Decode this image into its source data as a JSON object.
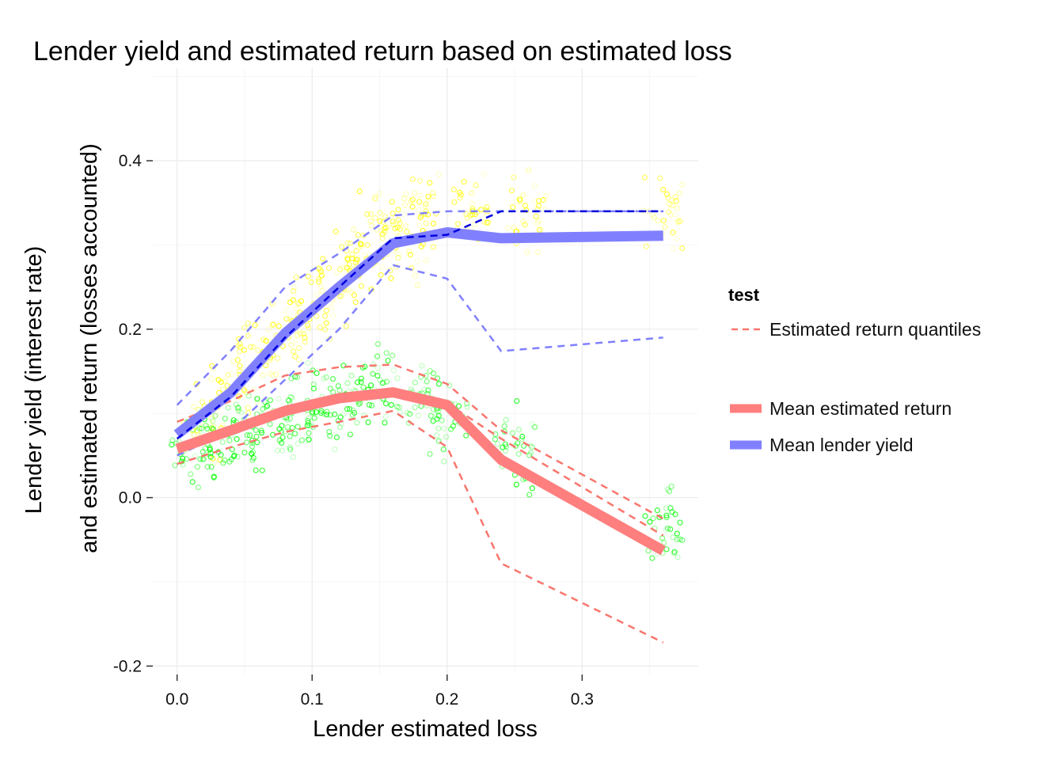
{
  "chart_data": {
    "type": "line",
    "title": "Lender yield and estimated return based on estimated loss",
    "xlabel": "Lender estimated loss",
    "ylabel_line1": "Lender yield (interest rate)",
    "ylabel_line2": "and estimated return (losses accounted)",
    "xlim": [
      -0.018,
      0.386
    ],
    "ylim": [
      -0.21,
      0.51
    ],
    "x_ticks": [
      0.0,
      0.1,
      0.2,
      0.3
    ],
    "x_tick_labels": [
      "0.0",
      "0.1",
      "0.2",
      "0.3"
    ],
    "y_ticks": [
      -0.2,
      0.0,
      0.2,
      0.4
    ],
    "y_tick_labels": [
      "-0.2",
      "0.0",
      "0.2",
      "0.4"
    ],
    "grid": true,
    "legend": {
      "title": "test",
      "position": "right",
      "entries": [
        {
          "label": "Estimated return quantiles",
          "style": "dashed",
          "color": "#f8766d"
        },
        {
          "label": "Mean estimated return",
          "style": "thick",
          "color": "#ff7f7f"
        },
        {
          "label": "Mean lender yield",
          "style": "thick",
          "color": "#8080ff"
        }
      ]
    },
    "colors": {
      "yield_points": "#ffff00",
      "return_points": "#00ff00",
      "mean_return": "#ff7f7f",
      "mean_yield": "#8080ff",
      "median_yield": "#0000dd",
      "quantile_return": "#f8766d",
      "quantile_yield": "#8080ff"
    },
    "series": [
      {
        "key": "mean_lender_yield",
        "x": [
          0.0,
          0.04,
          0.08,
          0.12,
          0.16,
          0.2,
          0.24,
          0.36
        ],
        "y": [
          0.075,
          0.125,
          0.195,
          0.25,
          0.302,
          0.315,
          0.308,
          0.311
        ]
      },
      {
        "key": "median_lender_yield",
        "x": [
          0.0,
          0.04,
          0.08,
          0.12,
          0.16,
          0.2,
          0.24,
          0.36
        ],
        "y": [
          0.07,
          0.12,
          0.19,
          0.25,
          0.308,
          0.312,
          0.34,
          0.34
        ]
      },
      {
        "key": "lender_yield_upper",
        "x": [
          0.0,
          0.04,
          0.08,
          0.12,
          0.16,
          0.2,
          0.24,
          0.36
        ],
        "y": [
          0.11,
          0.175,
          0.25,
          0.29,
          0.335,
          0.34,
          0.34,
          0.34
        ]
      },
      {
        "key": "lender_yield_lower",
        "x": [
          0.0,
          0.04,
          0.08,
          0.12,
          0.16,
          0.2,
          0.24,
          0.36
        ],
        "y": [
          0.05,
          0.08,
          0.14,
          0.2,
          0.276,
          0.26,
          0.174,
          0.19
        ]
      },
      {
        "key": "mean_estimated_return",
        "x": [
          0.0,
          0.04,
          0.08,
          0.12,
          0.16,
          0.2,
          0.24,
          0.36
        ],
        "y": [
          0.058,
          0.08,
          0.103,
          0.118,
          0.125,
          0.11,
          0.045,
          -0.063
        ]
      },
      {
        "key": "return_q_high",
        "x": [
          0.0,
          0.04,
          0.08,
          0.12,
          0.16,
          0.2,
          0.24,
          0.36
        ],
        "y": [
          0.09,
          0.115,
          0.145,
          0.155,
          0.158,
          0.135,
          0.08,
          -0.025
        ]
      },
      {
        "key": "return_q_mid",
        "x": [
          0.0,
          0.04,
          0.08,
          0.12,
          0.16,
          0.2,
          0.24,
          0.36
        ],
        "y": [
          0.06,
          0.085,
          0.108,
          0.12,
          0.128,
          0.112,
          0.07,
          -0.045
        ]
      },
      {
        "key": "return_q_low",
        "x": [
          0.0,
          0.04,
          0.08,
          0.12,
          0.16,
          0.2,
          0.24,
          0.36
        ],
        "y": [
          0.04,
          0.06,
          0.078,
          0.09,
          0.103,
          0.06,
          -0.078,
          -0.172
        ]
      }
    ],
    "point_clouds": [
      {
        "key": "lender_yield_points",
        "centers": [
          [
            0.02,
            0.085
          ],
          [
            0.04,
            0.13
          ],
          [
            0.06,
            0.165
          ],
          [
            0.08,
            0.2
          ],
          [
            0.1,
            0.235
          ],
          [
            0.12,
            0.26
          ],
          [
            0.14,
            0.285
          ],
          [
            0.15,
            0.32
          ],
          [
            0.17,
            0.305
          ],
          [
            0.18,
            0.335
          ],
          [
            0.22,
            0.335
          ],
          [
            0.26,
            0.34
          ],
          [
            0.36,
            0.34
          ]
        ]
      },
      {
        "key": "estimated_return_points",
        "centers": [
          [
            0.01,
            0.055
          ],
          [
            0.03,
            0.065
          ],
          [
            0.05,
            0.075
          ],
          [
            0.07,
            0.09
          ],
          [
            0.09,
            0.1
          ],
          [
            0.11,
            0.11
          ],
          [
            0.13,
            0.12
          ],
          [
            0.15,
            0.13
          ],
          [
            0.18,
            0.12
          ],
          [
            0.2,
            0.09
          ],
          [
            0.25,
            0.06
          ],
          [
            0.36,
            -0.03
          ]
        ]
      }
    ]
  }
}
